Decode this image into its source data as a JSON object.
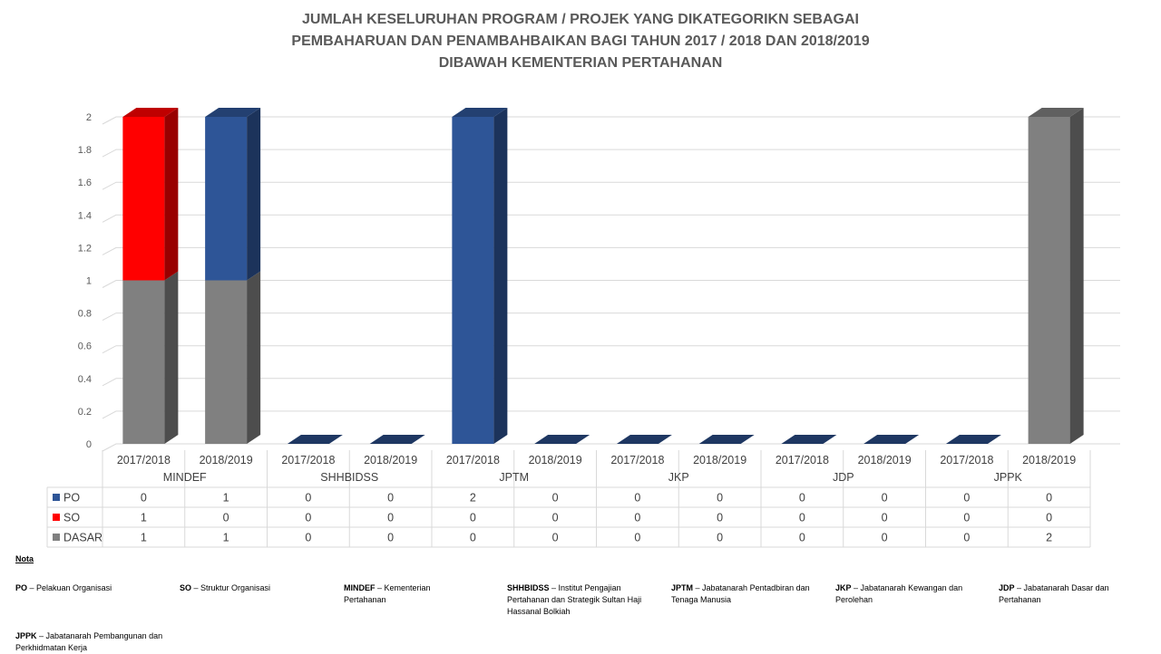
{
  "chart_data": {
    "type": "bar",
    "stacked": true,
    "title_lines": [
      "JUMLAH KESELURUHAN PROGRAM / PROJEK YANG DIKATEGORIKN SEBAGAI",
      "PEMBAHARUAN DAN PENAMBAHBAIKAN BAGI TAHUN 2017 / 2018 DAN 2018/2019",
      "DIBAWAH KEMENTERIAN PERTAHANAN"
    ],
    "groups": [
      "MINDEF",
      "SHHBIDSS",
      "JPTM",
      "JKP",
      "JDP",
      "JPPK"
    ],
    "categories": [
      "2017/2018",
      "2018/2019",
      "2017/2018",
      "2018/2019",
      "2017/2018",
      "2018/2019",
      "2017/2018",
      "2018/2019",
      "2017/2018",
      "2018/2019",
      "2017/2018",
      "2018/2019"
    ],
    "series": [
      {
        "name": "PO",
        "color": "#2E5597",
        "values": [
          0,
          1,
          0,
          0,
          2,
          0,
          0,
          0,
          0,
          0,
          0,
          0
        ]
      },
      {
        "name": "SO",
        "color": "#FF0000",
        "values": [
          1,
          0,
          0,
          0,
          0,
          0,
          0,
          0,
          0,
          0,
          0,
          0
        ]
      },
      {
        "name": "DASAR",
        "color": "#808080",
        "values": [
          1,
          1,
          0,
          0,
          0,
          0,
          0,
          0,
          0,
          0,
          0,
          2
        ]
      }
    ],
    "stack_order_bottom_to_top": [
      "DASAR",
      "SO",
      "PO"
    ],
    "ylim": [
      0,
      2
    ],
    "y_ticks": [
      "0",
      "0.2",
      "0.4",
      "0.6",
      "0.8",
      "1",
      "1.2",
      "1.4",
      "1.6",
      "1.8",
      "2"
    ],
    "grid": true,
    "data_table": true
  },
  "notes": {
    "heading": "Nota",
    "items": [
      {
        "abbr": "PO",
        "text": " – Pelakuan Organisasi"
      },
      {
        "abbr": "SO",
        "text": " – Struktur Organisasi"
      },
      {
        "abbr": "MINDEF",
        "text": " – Kementerian Pertahanan"
      },
      {
        "abbr": "SHHBIDSS",
        "text": " – Institut Pengajian Pertahanan dan Strategik Sultan Haji Hassanal Bolkiah"
      },
      {
        "abbr": "JPTM",
        "text": " – Jabatanarah Pentadbiran dan Tenaga Manusia"
      },
      {
        "abbr": "JKP",
        "text": " – Jabatanarah Kewangan dan Perolehan"
      },
      {
        "abbr": "JDP",
        "text": " – Jabatanarah Dasar dan Pertahanan"
      },
      {
        "abbr": "JPPK",
        "text": " – Jabatanarah Pembangunan dan Perkhidmatan Kerja"
      }
    ]
  }
}
